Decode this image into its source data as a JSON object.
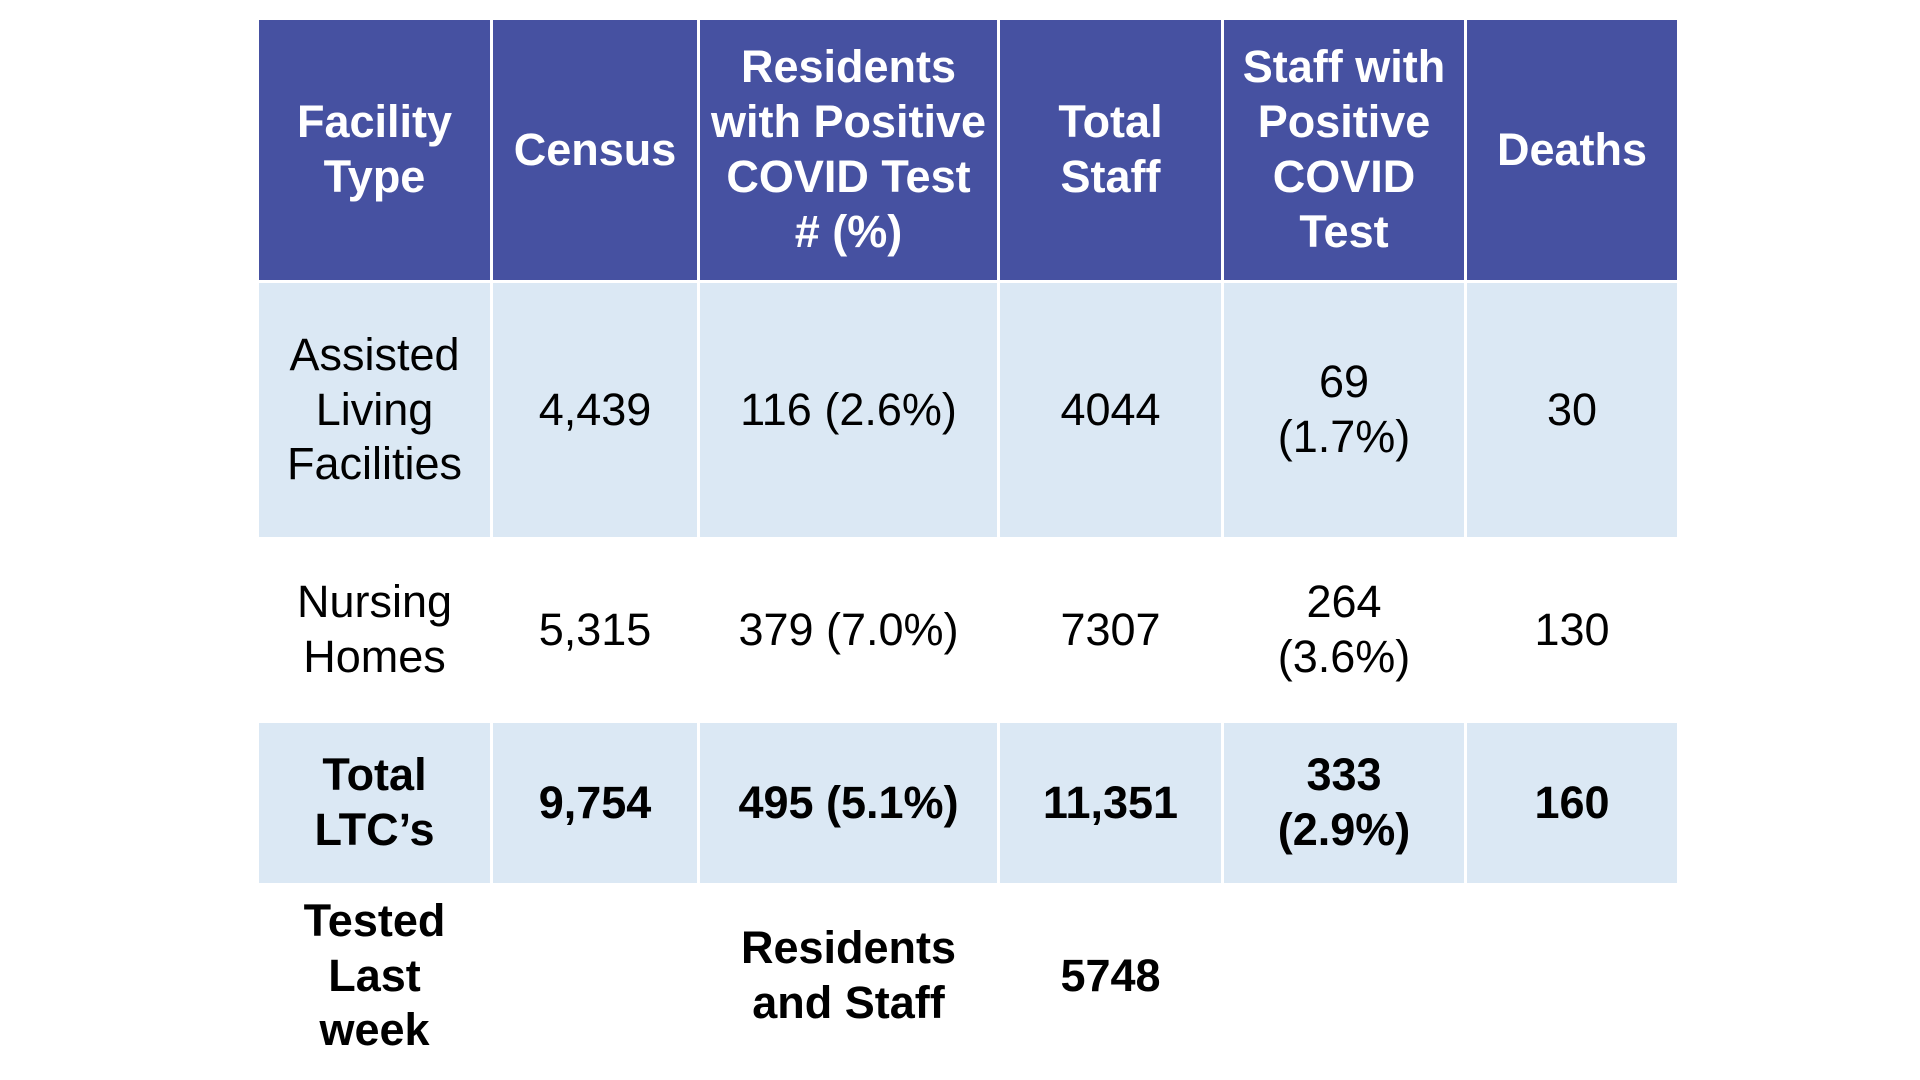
{
  "table": {
    "headers": [
      [
        "Facility",
        "Type"
      ],
      [
        "Census"
      ],
      [
        "Residents",
        "with Positive",
        "COVID Test",
        "# (%)"
      ],
      [
        "Total",
        "Staff"
      ],
      [
        "Staff with",
        "Positive",
        "COVID",
        "Test"
      ],
      [
        "Deaths"
      ]
    ],
    "rows": [
      {
        "facility": [
          "Assisted",
          "Living",
          "Facilities"
        ],
        "census": "4,439",
        "residents_positive": "116 (2.6%)",
        "total_staff": "4044",
        "staff_positive": [
          "69",
          "(1.7%)"
        ],
        "deaths": "30"
      },
      {
        "facility": [
          "Nursing",
          "Homes"
        ],
        "census": "5,315",
        "residents_positive": "379 (7.0%)",
        "total_staff": "7307",
        "staff_positive": [
          "264",
          "(3.6%)"
        ],
        "deaths": "130"
      },
      {
        "facility": [
          "Total",
          "LTC’s"
        ],
        "census": "9,754",
        "residents_positive": "495 (5.1%)",
        "total_staff": "11,351",
        "staff_positive": [
          "333",
          "(2.9%)"
        ],
        "deaths": "160"
      }
    ],
    "tested_row": {
      "label": [
        "Tested",
        "Last",
        "week"
      ],
      "group": [
        "Residents",
        "and Staff"
      ],
      "value": "5748"
    }
  },
  "colors": {
    "header_bg": "#4651a1",
    "header_text": "#ffffff",
    "band_bg": "#dbe8f4"
  }
}
